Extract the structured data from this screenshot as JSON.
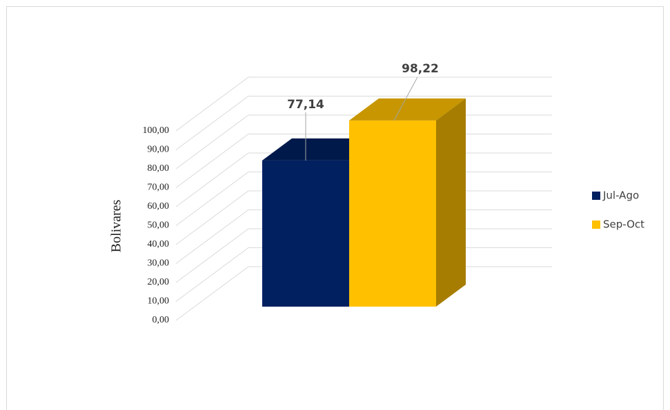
{
  "chart_data": {
    "type": "bar",
    "categories": [
      null
    ],
    "series": [
      {
        "name": "Jul-Ago",
        "color": "#002060",
        "values": [
          77.14
        ],
        "value_labels": [
          "77,14"
        ]
      },
      {
        "name": "Sep-Oct",
        "color": "#ffc000",
        "values": [
          98.22
        ],
        "value_labels": [
          "98,22"
        ]
      }
    ],
    "ylabel": "Bolivares",
    "ylim": [
      0,
      100
    ],
    "yticks": [
      {
        "value": 0,
        "label": "0,00"
      },
      {
        "value": 10,
        "label": "10,00"
      },
      {
        "value": 20,
        "label": "20,00"
      },
      {
        "value": 30,
        "label": "30,00"
      },
      {
        "value": 40,
        "label": "40,00"
      },
      {
        "value": 50,
        "label": "50,00"
      },
      {
        "value": 60,
        "label": "60,00"
      },
      {
        "value": 70,
        "label": "70,00"
      },
      {
        "value": 80,
        "label": "80,00"
      },
      {
        "value": 90,
        "label": "90,00"
      },
      {
        "value": 100,
        "label": "100,00"
      }
    ],
    "grid": true,
    "legend": "right"
  }
}
